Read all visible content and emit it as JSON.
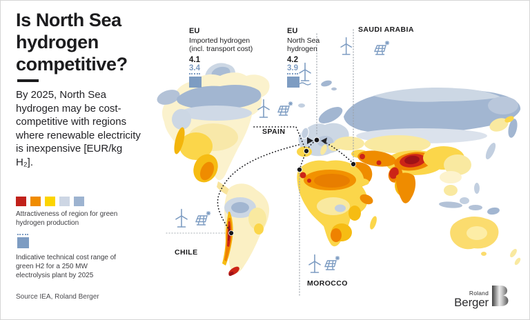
{
  "poster": {
    "title": "Is North Sea hydrogen competitive?",
    "body": "By 2025, North Sea hydrogen may be cost-competitive with regions where renewable electricity is inexpensive [EUR/kg H₂].",
    "source": "Source IEA, Roland Berger"
  },
  "callouts": {
    "eu_imported": {
      "region": "EU",
      "desc1": "Imported hydrogen",
      "desc2": "(incl. transport cost)",
      "value_high": "4.1",
      "value_low": "3.4"
    },
    "eu_north_sea": {
      "region": "EU",
      "desc1": "North Sea",
      "desc2": "hydrogen",
      "value_high": "4.2",
      "value_low": "3.9"
    }
  },
  "regions": {
    "saudi_arabia": {
      "label": "SAUDI ARABIA"
    },
    "spain": {
      "label": "SPAIN"
    },
    "chile": {
      "label": "CHILE"
    },
    "morocco": {
      "label": "MOROCCO"
    }
  },
  "legend": {
    "attractiveness": {
      "colors": [
        "#c1211a",
        "#f08c00",
        "#fcd400",
        "#cdd6e4",
        "#9db3d0"
      ],
      "label": "Attractiveness of region for green hydrogen production"
    },
    "cost_range": {
      "color": "#7d9cc2",
      "label": "Indicative technical cost range of green H2 for a 250 MW electrolysis plant by 2025"
    }
  },
  "icons": {
    "wind_turbine": "wind-turbine-icon",
    "offshore_wind_turbine": "offshore-wind-turbine-icon",
    "solar_panel": "solar-panel-icon"
  },
  "logo": {
    "name_top": "Roland",
    "name_bottom": "Berger"
  }
}
